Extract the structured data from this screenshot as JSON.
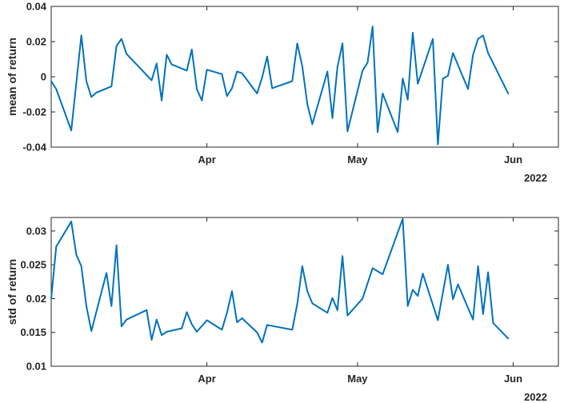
{
  "chart_data": [
    {
      "type": "line",
      "ylabel": "mean of return",
      "ylim": [
        -0.04,
        0.04
      ],
      "yticks": [
        -0.04,
        -0.02,
        0,
        0.02,
        0.04
      ],
      "ytick_labels": [
        "-0.04",
        "-0.02",
        "0",
        "0.02",
        "0.04"
      ],
      "xlim": [
        "2022-03-01",
        "2022-06-10"
      ],
      "xticks": [
        "2022-04-01",
        "2022-05-01",
        "2022-06-01"
      ],
      "xtick_labels": [
        "Apr",
        "May",
        "Jun"
      ],
      "xaxis_secondary_label": "2022",
      "line_color": "#0072BD",
      "grid": false,
      "x": [
        "2022-03-01",
        "2022-03-02",
        "2022-03-05",
        "2022-03-07",
        "2022-03-08",
        "2022-03-09",
        "2022-03-10",
        "2022-03-13",
        "2022-03-14",
        "2022-03-15",
        "2022-03-16",
        "2022-03-21",
        "2022-03-22",
        "2022-03-23",
        "2022-03-24",
        "2022-03-25",
        "2022-03-28",
        "2022-03-29",
        "2022-03-30",
        "2022-03-31",
        "2022-04-01",
        "2022-04-04",
        "2022-04-05",
        "2022-04-06",
        "2022-04-07",
        "2022-04-08",
        "2022-04-11",
        "2022-04-12",
        "2022-04-13",
        "2022-04-14",
        "2022-04-18",
        "2022-04-19",
        "2022-04-20",
        "2022-04-21",
        "2022-04-22",
        "2022-04-25",
        "2022-04-26",
        "2022-04-27",
        "2022-04-28",
        "2022-04-29",
        "2022-05-02",
        "2022-05-03",
        "2022-05-04",
        "2022-05-05",
        "2022-05-06",
        "2022-05-09",
        "2022-05-10",
        "2022-05-11",
        "2022-05-12",
        "2022-05-13",
        "2022-05-16",
        "2022-05-17",
        "2022-05-18",
        "2022-05-19",
        "2022-05-20",
        "2022-05-23",
        "2022-05-24",
        "2022-05-25",
        "2022-05-26",
        "2022-05-27",
        "2022-05-31"
      ],
      "y": [
        -0.0025,
        -0.007,
        -0.0305,
        0.0235,
        -0.0025,
        -0.0115,
        -0.009,
        -0.0055,
        0.0175,
        0.0215,
        0.013,
        -0.002,
        0.0075,
        -0.0135,
        0.0125,
        0.007,
        0.0035,
        0.0155,
        -0.007,
        -0.0135,
        0.004,
        0.0015,
        -0.011,
        -0.0065,
        0.003,
        0.002,
        -0.0095,
        -0.0005,
        0.0115,
        -0.0065,
        -0.0025,
        0.019,
        0.006,
        -0.0155,
        -0.027,
        0.003,
        -0.0235,
        0.0055,
        0.019,
        -0.031,
        0.0035,
        0.008,
        0.0285,
        -0.0315,
        -0.0095,
        -0.0315,
        -0.001,
        -0.013,
        0.025,
        -0.004,
        0.0215,
        -0.0385,
        -0.001,
        0.0005,
        0.0135,
        -0.007,
        0.0125,
        0.0215,
        0.0235,
        0.0135,
        -0.0095
      ]
    },
    {
      "type": "line",
      "ylabel": "std of return",
      "ylim": [
        0.01,
        0.032
      ],
      "yticks": [
        0.01,
        0.015,
        0.02,
        0.025,
        0.03
      ],
      "ytick_labels": [
        "0.01",
        "0.015",
        "0.02",
        "0.025",
        "0.03"
      ],
      "xlim": [
        "2022-03-01",
        "2022-06-10"
      ],
      "xticks": [
        "2022-04-01",
        "2022-05-01",
        "2022-06-01"
      ],
      "xtick_labels": [
        "Apr",
        "May",
        "Jun"
      ],
      "xaxis_secondary_label": "2022",
      "line_color": "#0072BD",
      "grid": false,
      "x": [
        "2022-03-01",
        "2022-03-02",
        "2022-03-05",
        "2022-03-06",
        "2022-03-07",
        "2022-03-08",
        "2022-03-09",
        "2022-03-12",
        "2022-03-13",
        "2022-03-14",
        "2022-03-15",
        "2022-03-16",
        "2022-03-20",
        "2022-03-21",
        "2022-03-22",
        "2022-03-23",
        "2022-03-24",
        "2022-03-27",
        "2022-03-28",
        "2022-03-29",
        "2022-03-30",
        "2022-04-01",
        "2022-04-04",
        "2022-04-05",
        "2022-04-06",
        "2022-04-07",
        "2022-04-08",
        "2022-04-11",
        "2022-04-12",
        "2022-04-13",
        "2022-04-18",
        "2022-04-19",
        "2022-04-20",
        "2022-04-21",
        "2022-04-22",
        "2022-04-25",
        "2022-04-26",
        "2022-04-27",
        "2022-04-28",
        "2022-04-29",
        "2022-05-02",
        "2022-05-04",
        "2022-05-06",
        "2022-05-10",
        "2022-05-11",
        "2022-05-12",
        "2022-05-13",
        "2022-05-14",
        "2022-05-17",
        "2022-05-19",
        "2022-05-20",
        "2022-05-21",
        "2022-05-24",
        "2022-05-25",
        "2022-05-26",
        "2022-05-27",
        "2022-05-28",
        "2022-05-31"
      ],
      "y": [
        0.02,
        0.0277,
        0.0314,
        0.0265,
        0.0248,
        0.0189,
        0.0152,
        0.0238,
        0.0189,
        0.0279,
        0.0159,
        0.0169,
        0.0183,
        0.0139,
        0.0169,
        0.0146,
        0.0151,
        0.0156,
        0.018,
        0.0162,
        0.0151,
        0.0168,
        0.0154,
        0.0179,
        0.0211,
        0.0165,
        0.0171,
        0.015,
        0.0135,
        0.0161,
        0.0154,
        0.0192,
        0.0248,
        0.0211,
        0.0193,
        0.0179,
        0.0201,
        0.0183,
        0.0263,
        0.0175,
        0.02,
        0.0245,
        0.0236,
        0.0318,
        0.0189,
        0.0213,
        0.0204,
        0.0237,
        0.0168,
        0.025,
        0.0199,
        0.0221,
        0.0169,
        0.0248,
        0.0177,
        0.0239,
        0.0164,
        0.0141
      ]
    }
  ]
}
